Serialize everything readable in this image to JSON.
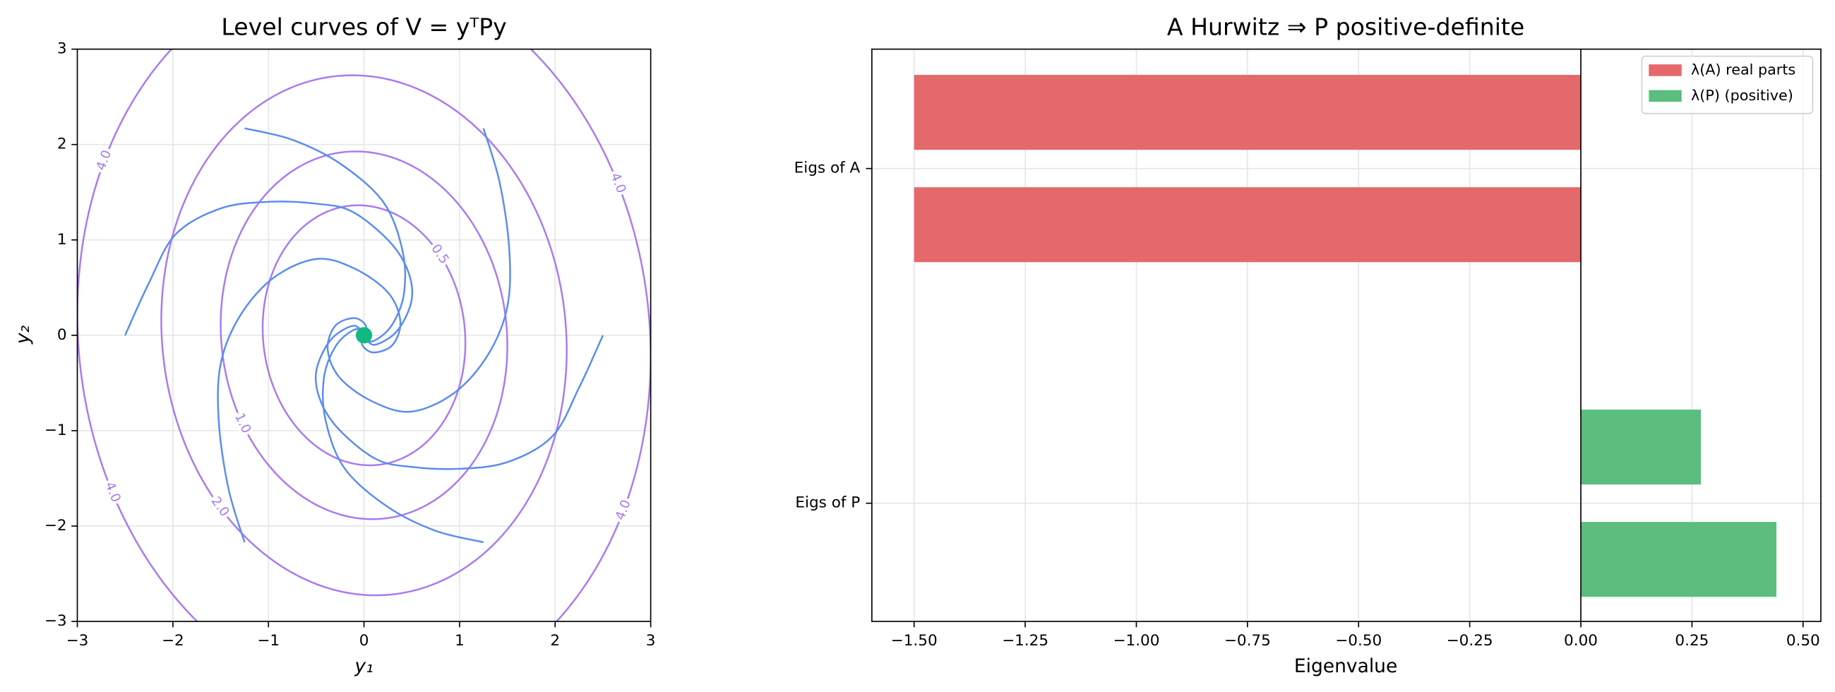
{
  "chart_data": [
    {
      "type": "phase",
      "title": "Level curves of V = yᵀPy",
      "xlabel": "y₁",
      "ylabel": "y₂",
      "xlim": [
        -3,
        3
      ],
      "ylim": [
        -3,
        3
      ],
      "xticks": [
        {
          "value": -3,
          "label": "−3"
        },
        {
          "value": -2,
          "label": "−2"
        },
        {
          "value": -1,
          "label": "−1"
        },
        0,
        1,
        2,
        3
      ],
      "yticks": [
        {
          "value": -3,
          "label": "−3"
        },
        {
          "value": -2,
          "label": "−2"
        },
        {
          "value": -1,
          "label": "−1"
        },
        0,
        1,
        2,
        3
      ],
      "grid": true,
      "P": [
        [
          0.446,
          0.02
        ],
        [
          0.02,
          0.27
        ]
      ],
      "levels": [
        0.5,
        {
          "value": 1,
          "label": "1.0"
        },
        {
          "value": 2,
          "label": "2.0"
        },
        {
          "value": 4,
          "label": "4.0"
        }
      ],
      "contour_color": "#a97bf0",
      "trajectory_color": "#5b8def",
      "trajectories": [
        {
          "x": [
            2.5,
            2.25,
            1.97,
            1.5,
            0.99,
            0.5,
            0.13,
            -0.25,
            -0.45,
            -0.5,
            -0.35,
            -0.11,
            0
          ],
          "y": [
            0,
            -0.55,
            -1.06,
            -1.33,
            -1.4,
            -1.38,
            -1.3,
            -1.0,
            -0.7,
            -0.38,
            -0.05,
            0.1,
            0
          ]
        },
        {
          "x": [
            -2.5,
            -2.25,
            -1.97,
            -1.5,
            -0.99,
            -0.5,
            -0.13,
            0.25,
            0.45,
            0.5,
            0.35,
            0.11,
            0
          ],
          "y": [
            0,
            0.55,
            1.06,
            1.33,
            1.4,
            1.38,
            1.3,
            1.0,
            0.7,
            0.38,
            0.05,
            -0.1,
            0
          ]
        },
        {
          "x": [
            1.25,
            1.42,
            1.52,
            1.5,
            1.3,
            0.95,
            0.5,
            0.1,
            -0.25,
            -0.38,
            -0.3,
            -0.1,
            0.02,
            0
          ],
          "y": [
            2.17,
            1.6,
            0.9,
            0.3,
            -0.2,
            -0.6,
            -0.8,
            -0.7,
            -0.45,
            -0.15,
            0.1,
            0.18,
            0.1,
            0
          ]
        },
        {
          "x": [
            -1.25,
            -1.42,
            -1.52,
            -1.5,
            -1.3,
            -0.95,
            -0.5,
            -0.1,
            0.25,
            0.38,
            0.3,
            0.1,
            -0.02,
            0
          ],
          "y": [
            -2.17,
            -1.6,
            -0.9,
            -0.3,
            0.2,
            0.6,
            0.8,
            0.7,
            0.45,
            0.15,
            -0.1,
            -0.18,
            -0.1,
            0
          ]
        },
        {
          "x": [
            -1.25,
            -0.75,
            -0.25,
            0.2,
            0.4,
            0.42,
            0.3,
            0.12,
            -0.02,
            0
          ],
          "y": [
            2.17,
            2.05,
            1.8,
            1.4,
            0.9,
            0.45,
            0.12,
            -0.05,
            -0.06,
            0
          ]
        },
        {
          "x": [
            1.25,
            0.75,
            0.25,
            -0.2,
            -0.4,
            -0.42,
            -0.3,
            -0.12,
            0.02,
            0
          ],
          "y": [
            -2.17,
            -2.05,
            -1.8,
            -1.4,
            -0.9,
            -0.45,
            -0.12,
            0.05,
            0.06,
            0
          ]
        }
      ],
      "equilibrium": {
        "x": 0,
        "y": 0,
        "color": "#10b981"
      }
    },
    {
      "type": "barh",
      "title": "A Hurwitz ⇒ P positive-definite",
      "xlabel": "Eigenvalue",
      "categories": [
        "Eigs of A",
        "Eigs of P"
      ],
      "series": [
        {
          "name": "λ(A) real parts",
          "color": "#e5686b",
          "values": [
            -1.5,
            -1.5
          ]
        },
        {
          "name": "λ(P) (positive)",
          "color": "#5bbd7e",
          "values": [
            0.27,
            0.44
          ]
        }
      ],
      "xlim": [
        -1.595,
        0.54
      ],
      "xticks": [
        {
          "value": -1.5,
          "label": "−1.50"
        },
        {
          "value": -1.25,
          "label": "−1.25"
        },
        {
          "value": -1,
          "label": "−1.00"
        },
        {
          "value": -0.75,
          "label": "−0.75"
        },
        {
          "value": -0.5,
          "label": "−0.50"
        },
        {
          "value": -0.25,
          "label": "−0.25"
        },
        {
          "value": 0,
          "label": "0.00"
        },
        {
          "value": 0.25,
          "label": "0.25"
        },
        {
          "value": 0.5,
          "label": "0.50"
        }
      ],
      "grid": true,
      "legend": "upper right"
    }
  ]
}
